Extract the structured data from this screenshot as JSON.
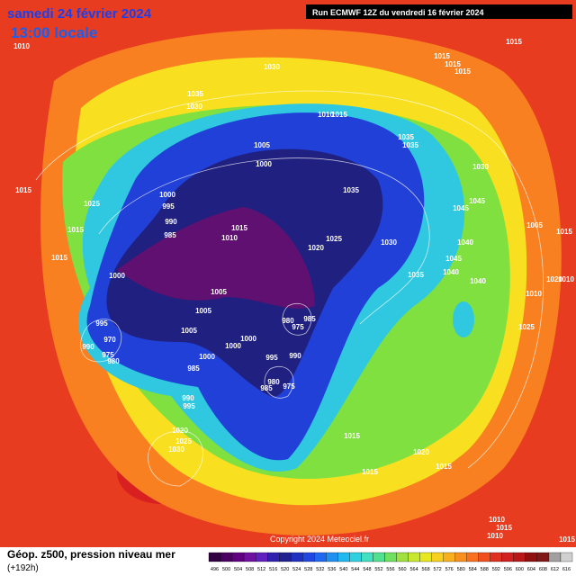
{
  "header": {
    "date": "samedi 24 février 2024",
    "time": "13:00 locale",
    "run": "Run ECMWF 12Z du vendredi 16 février 2024"
  },
  "isobar_labels": [
    1010,
    1030,
    1015,
    1015,
    1015,
    1015,
    1035,
    1030,
    1010,
    1015,
    1005,
    1000,
    1035,
    1035,
    1030,
    1035,
    1015,
    1000,
    1025,
    995,
    990,
    985,
    1010,
    1015,
    1020,
    1025,
    1030,
    1045,
    1045,
    1005,
    1015,
    1015,
    1015,
    1000,
    1040,
    1035,
    1045,
    1040,
    1040,
    1010,
    1010,
    1020,
    1005,
    1005,
    980,
    985,
    975,
    1005,
    1025,
    995,
    970,
    990,
    975,
    980,
    1000,
    1000,
    995,
    990,
    1000,
    985,
    980,
    985,
    975,
    990,
    995,
    1020,
    1025,
    1030,
    1015,
    1020,
    1015,
    1015,
    1010,
    1015,
    1010,
    1015
  ],
  "copyright": "Copyright 2024 Meteociel.fr",
  "footer": {
    "caption": "Géop. z500, pression niveau mer",
    "lead": "(+192h)"
  },
  "legend": {
    "labels": [
      496,
      500,
      504,
      508,
      512,
      516,
      520,
      524,
      528,
      532,
      536,
      540,
      544,
      548,
      552,
      556,
      560,
      564,
      568,
      572,
      576,
      580,
      584,
      588,
      592,
      596,
      600,
      604,
      608,
      612,
      616
    ],
    "colors": [
      "#300040",
      "#4a0060",
      "#600080",
      "#7010a0",
      "#6020c0",
      "#3020b0",
      "#202090",
      "#2030c0",
      "#2048e0",
      "#2068f0",
      "#2090f0",
      "#20b8f0",
      "#30d0e0",
      "#40e0c0",
      "#50e090",
      "#70e060",
      "#a0e040",
      "#c8e830",
      "#e8e820",
      "#f8d020",
      "#f8b020",
      "#f89020",
      "#f87020",
      "#f05020",
      "#e03020",
      "#d02020",
      "#b81818",
      "#901010",
      "#801818",
      "#a0a0a0",
      "#d0d0d0"
    ]
  }
}
